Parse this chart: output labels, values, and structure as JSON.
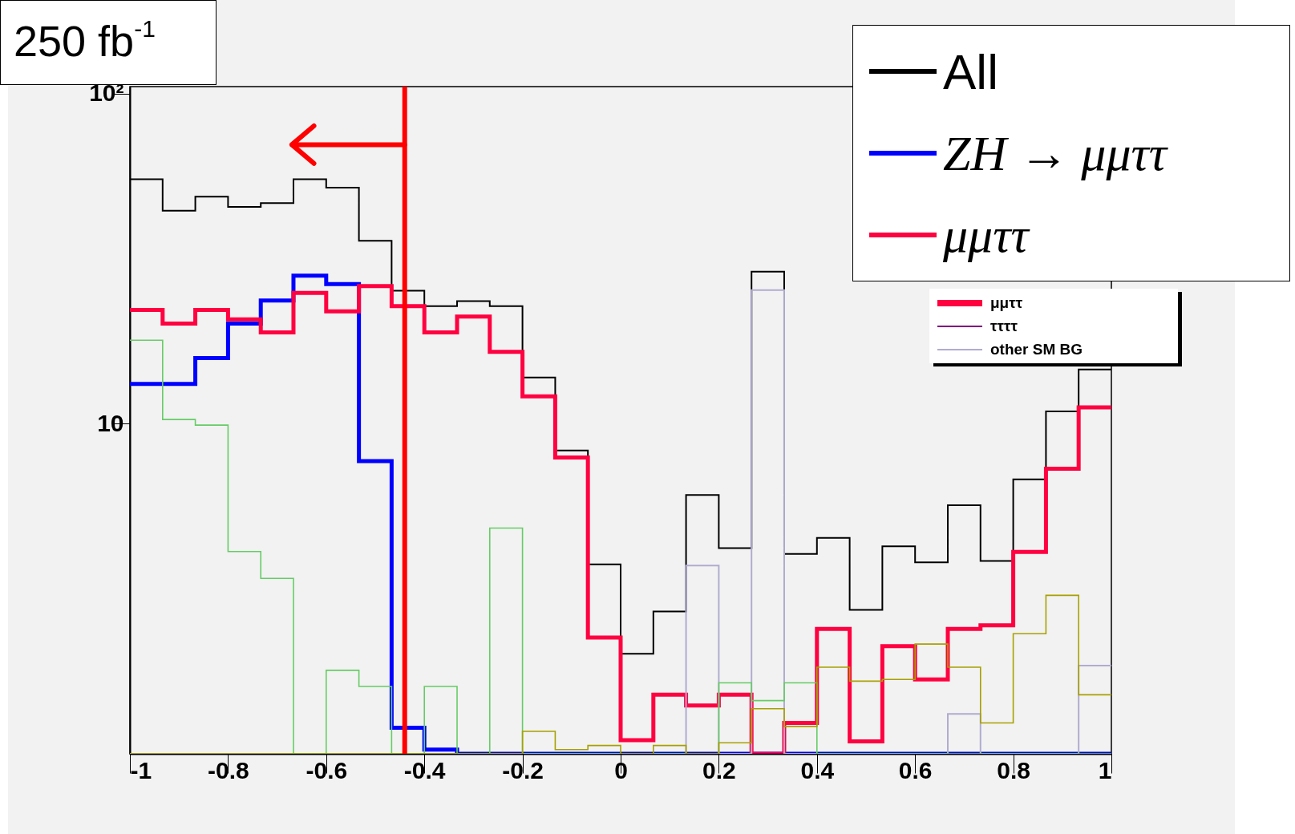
{
  "chart_data": {
    "type": "histogram",
    "bins": [
      -1,
      -0.9333,
      -0.8667,
      -0.8,
      -0.7333,
      -0.6667,
      -0.6,
      -0.5333,
      -0.4667,
      -0.4,
      -0.3333,
      -0.2667,
      -0.2,
      -0.1333,
      -0.0667,
      0,
      0.0667,
      0.1333,
      0.2,
      0.2667,
      0.3333,
      0.4,
      0.4667,
      0.5333,
      0.6,
      0.6667,
      0.7333,
      0.8,
      0.8667,
      0.9333,
      1
    ],
    "series": [
      {
        "name": "All",
        "color": "#000000",
        "values": [
          55,
          44.2,
          48.7,
          45.4,
          46.6,
          55,
          51.9,
          35.8,
          25.3,
          22.7,
          23.5,
          22.7,
          13.8,
          8.3,
          3.75,
          2.01,
          2.7,
          6.08,
          4.2,
          28.9,
          4.03,
          4.51,
          2.73,
          4.25,
          3.8,
          5.66,
          3.84,
          6.78,
          10.9,
          14.6
        ]
      },
      {
        "name": "ZH → μμττ",
        "color": "#0000ff",
        "values": [
          13.2,
          13.2,
          15.8,
          20.1,
          23.6,
          28.1,
          26.5,
          7.7,
          1.2,
          1.03,
          1,
          1,
          1,
          1,
          1,
          1,
          1,
          1,
          1,
          1,
          1,
          1,
          1,
          1,
          1,
          1,
          1,
          1,
          1,
          1
        ]
      },
      {
        "name": "μμττ",
        "color": "#ff0040",
        "values": [
          22.1,
          20.1,
          22.1,
          20.7,
          18.9,
          24.9,
          21.9,
          26.1,
          22.7,
          18.9,
          21.1,
          16.5,
          12.1,
          7.9,
          2.25,
          1.1,
          1.51,
          1.4,
          1.51,
          1,
          1.24,
          2.39,
          1.09,
          2.12,
          1.68,
          2.39,
          2.45,
          4.09,
          7.3,
          11.2
        ]
      },
      {
        "name": "ττττ",
        "color": "#800080",
        "values": [
          1,
          1,
          1,
          1,
          1,
          1,
          1,
          1,
          1,
          1,
          1,
          1,
          1,
          1,
          1,
          1,
          1,
          1,
          1,
          1,
          1,
          1,
          1,
          1,
          1,
          1,
          1,
          1,
          1,
          1
        ]
      },
      {
        "name": "other SM BG",
        "color": "#b0acd0",
        "values": [
          1,
          1,
          1,
          1,
          1,
          1,
          1,
          1,
          1,
          1,
          1,
          1,
          1,
          1,
          1,
          1,
          1,
          3.72,
          1,
          25.4,
          1,
          1,
          1,
          1,
          1,
          1.32,
          1,
          1,
          1,
          1.85
        ]
      },
      {
        "color": "#66cc66",
        "values": [
          17.9,
          10.3,
          9.9,
          4.1,
          3.4,
          1,
          1.79,
          1.6,
          1,
          1.6,
          1,
          4.83,
          1,
          1,
          1,
          1,
          1,
          1,
          1.64,
          1.45,
          1.64,
          1,
          1,
          1,
          1,
          1,
          1,
          1,
          1,
          1
        ]
      },
      {
        "color": "#a8a000",
        "values": [
          1,
          1,
          1,
          1,
          1,
          1,
          1,
          1,
          1,
          1,
          1,
          1,
          1.17,
          1.03,
          1.06,
          1,
          1.06,
          1,
          1.08,
          1.37,
          1.21,
          1.83,
          1.66,
          1.68,
          2.15,
          1.83,
          1.24,
          2.31,
          3.02,
          1.51
        ]
      }
    ],
    "log": "y",
    "xlim": [
      -1,
      1
    ],
    "ylim": [
      1,
      105
    ],
    "xticks": [
      -1,
      -0.8,
      -0.6,
      -0.4,
      -0.2,
      0,
      0.2,
      0.4,
      0.6,
      0.8,
      1
    ],
    "yticks": [
      10,
      {
        "value": 100,
        "label": "10²"
      }
    ],
    "ref_lines": [
      {
        "axis": "x",
        "value": -0.44,
        "color": "#ff0000"
      }
    ],
    "annotations": [
      "250 fb$^{-1}$"
    ],
    "legend": "top right"
  }
}
